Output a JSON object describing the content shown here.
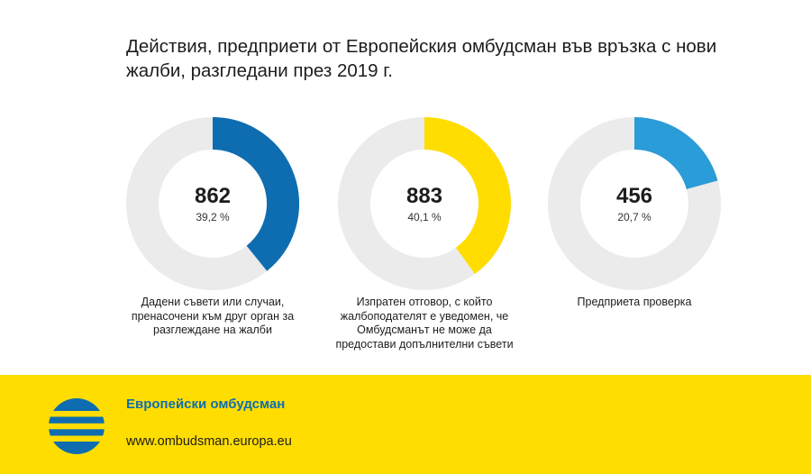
{
  "chart_data": {
    "type": "donut",
    "title": "Действия, предприети от Европейския омбудсман във връзка с нови жалби, разгледани през 2019 г.",
    "track_color": "#ebebeb",
    "series": [
      {
        "value": 862,
        "percent": 39.2,
        "value_label": "862",
        "percent_label": "39,2 %",
        "color": "#0e6db1",
        "label": "Дадени съвети или случаи, пренасочени към друг орган за разглеждане на жалби"
      },
      {
        "value": 883,
        "percent": 40.1,
        "value_label": "883",
        "percent_label": "40,1 %",
        "color": "#ffdd00",
        "label": "Изпратен отговор, с който жалбоподателят е уведомен, че Омбудсманът не може да предостави допълнителни съвети"
      },
      {
        "value": 456,
        "percent": 20.7,
        "value_label": "456",
        "percent_label": "20,7 %",
        "color": "#2a9cd7",
        "label": "Предприета проверка"
      }
    ]
  },
  "footer": {
    "brand": "Европейски омбудсман",
    "url": "www.ombudsman.europa.eu",
    "logo_icon": "european-ombudsman-logo-icon",
    "accent_color": "#ffdd00",
    "brand_color": "#0e6db1"
  }
}
